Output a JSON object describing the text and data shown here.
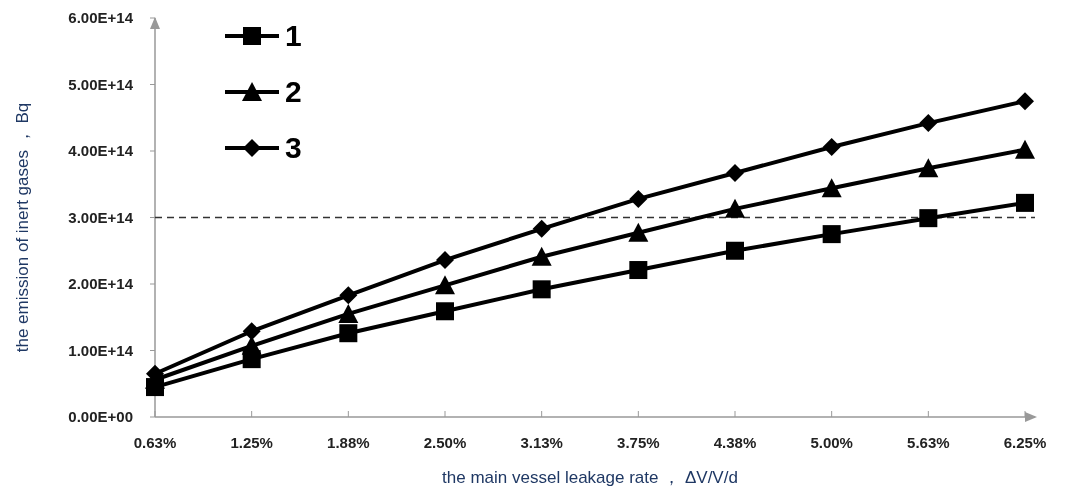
{
  "chart_data": {
    "type": "line",
    "xlabel": "the main vessel leakage rate ， ΔV/V/d",
    "ylabel": "the emission of inert gases ， Bq",
    "categories": [
      "0.63%",
      "1.25%",
      "1.88%",
      "2.50%",
      "3.13%",
      "3.75%",
      "4.38%",
      "5.00%",
      "5.63%",
      "6.25%"
    ],
    "series": [
      {
        "name": "1",
        "color": "#000000",
        "marker": "square",
        "values": [
          45000000000000.0,
          87000000000000.0,
          126000000000000.0,
          159000000000000.0,
          192000000000000.0,
          221000000000000.0,
          250000000000000.0,
          275000000000000.0,
          299000000000000.0,
          322000000000000.0
        ]
      },
      {
        "name": "2",
        "color": "#000000",
        "marker": "triangle",
        "values": [
          56000000000000.0,
          107000000000000.0,
          155000000000000.0,
          198000000000000.0,
          241000000000000.0,
          277000000000000.0,
          313000000000000.0,
          344000000000000.0,
          374000000000000.0,
          402000000000000.0
        ]
      },
      {
        "name": "3",
        "color": "#000000",
        "marker": "diamond",
        "values": [
          65000000000000.0,
          129000000000000.0,
          183000000000000.0,
          236000000000000.0,
          283000000000000.0,
          328000000000000.0,
          367000000000000.0,
          406000000000000.0,
          442000000000000.0,
          475000000000000.0
        ]
      }
    ],
    "ylim": [
      0,
      600000000000000.0
    ],
    "yticks": [
      {
        "value": 0,
        "label": "0.00E+00"
      },
      {
        "value": 100000000000000.0,
        "label": "1.00E+14"
      },
      {
        "value": 200000000000000.0,
        "label": "2.00E+14"
      },
      {
        "value": 300000000000000.0,
        "label": "3.00E+14"
      },
      {
        "value": 400000000000000.0,
        "label": "4.00E+14"
      },
      {
        "value": 500000000000000.0,
        "label": "5.00E+14"
      },
      {
        "value": 600000000000000.0,
        "label": "6.00E+14"
      }
    ],
    "ref_lines": [
      {
        "axis": "y",
        "value": 300000000000000.0,
        "label": null,
        "color": "#333333",
        "line_style": "dashed"
      }
    ],
    "grid": false,
    "legend": "top left",
    "line_style": "solid"
  }
}
